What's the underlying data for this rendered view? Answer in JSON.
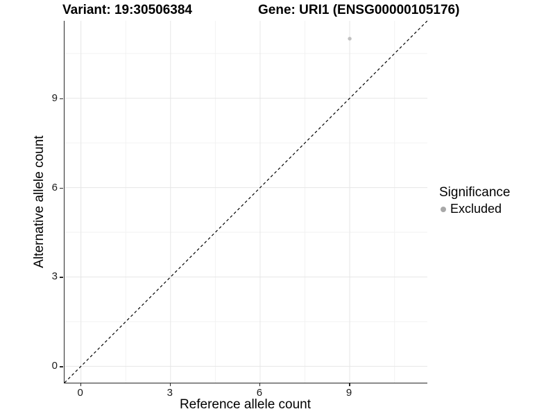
{
  "titles": {
    "variant": "Variant: 19:30506384",
    "gene": "Gene: URI1 (ENSG00000105176)"
  },
  "axes": {
    "x": {
      "label": "Reference allele count",
      "ticks": [
        "0",
        "3",
        "6",
        "9"
      ]
    },
    "y": {
      "label": "Alternative allele count",
      "ticks": [
        "0",
        "3",
        "6",
        "9"
      ]
    }
  },
  "legend": {
    "title": "Significance",
    "items": [
      {
        "label": "Excluded",
        "color": "#a8a8a8",
        "marker": "circle-icon"
      }
    ]
  },
  "colors": {
    "background": "#ffffff",
    "grid_major": "#e6e6e6",
    "grid_minor": "#f2f2f2",
    "axis_line": "#262626",
    "tick_text": "#1a1a1a",
    "point": "#c0c0c0",
    "legend_point": "#a8a8a8",
    "reference_line": "#000000"
  },
  "chart_data": {
    "type": "scatter",
    "title": "Variant: 19:30506384  |  Gene: URI1 (ENSG00000105176)",
    "xlabel": "Reference allele count",
    "ylabel": "Alternative allele count",
    "xlim": [
      -0.55,
      11.6
    ],
    "ylim": [
      -0.55,
      11.6
    ],
    "x_major_ticks": [
      0,
      3,
      6,
      9
    ],
    "y_major_ticks": [
      0,
      3,
      6,
      9
    ],
    "x_minor_ticks": [
      1.5,
      4.5,
      7.5,
      10.5
    ],
    "y_minor_ticks": [
      1.5,
      4.5,
      7.5,
      10.5
    ],
    "grid": "major+minor",
    "legend_position": "right",
    "series": [
      {
        "name": "Excluded",
        "points": [
          {
            "x": 9,
            "y": 11
          }
        ]
      }
    ],
    "reference_line": {
      "type": "identity y=x",
      "style": "dashed",
      "color": "#000000"
    },
    "point_radius_px": 2.7
  }
}
